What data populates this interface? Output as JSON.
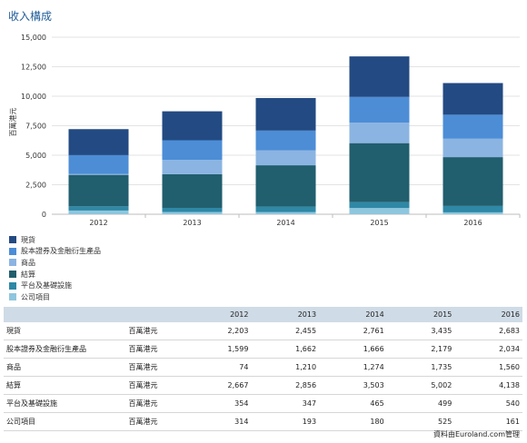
{
  "page": {
    "title": "收入構成",
    "credit": "資料由Euroland.com管理"
  },
  "chart_data": {
    "type": "bar",
    "stacked": true,
    "categories": [
      "2012",
      "2013",
      "2014",
      "2015",
      "2016"
    ],
    "ylabel": "百萬港元",
    "ylim": [
      0,
      15000
    ],
    "yticks": [
      0,
      2500,
      5000,
      7500,
      10000,
      12500,
      15000
    ],
    "ytick_labels": [
      "0",
      "2,500",
      "5,000",
      "7,500",
      "10,000",
      "12,500",
      "15,000"
    ],
    "grid": true,
    "legend_position": "bottom-left",
    "series": [
      {
        "name": "公司項目",
        "color": "#8ec6de",
        "values": [
          314,
          193,
          180,
          525,
          161
        ]
      },
      {
        "name": "平台及基礎設施",
        "color": "#2e88a6",
        "values": [
          354,
          347,
          465,
          499,
          540
        ]
      },
      {
        "name": "結算",
        "color": "#215e6e",
        "values": [
          2667,
          2856,
          3503,
          5002,
          4138
        ]
      },
      {
        "name": "商品",
        "color": "#8bb4e2",
        "values": [
          74,
          1210,
          1274,
          1735,
          1560
        ]
      },
      {
        "name": "股本證券及金融衍生產品",
        "color": "#4c8dd6",
        "values": [
          1599,
          1662,
          1666,
          2179,
          2034
        ]
      },
      {
        "name": "現貨",
        "color": "#234a82",
        "values": [
          2203,
          2455,
          2761,
          3435,
          2683
        ]
      }
    ]
  },
  "legend": {
    "items": [
      {
        "label": "現貨",
        "color": "#234a82"
      },
      {
        "label": "股本證券及金融衍生產品",
        "color": "#4c8dd6"
      },
      {
        "label": "商品",
        "color": "#8bb4e2"
      },
      {
        "label": "結算",
        "color": "#215e6e"
      },
      {
        "label": "平台及基礎設施",
        "color": "#2e88a6"
      },
      {
        "label": "公司項目",
        "color": "#8ec6de"
      }
    ]
  },
  "table": {
    "headers": [
      "",
      "",
      "2012",
      "2013",
      "2014",
      "2015",
      "2016"
    ],
    "rows": [
      {
        "name": "現貨",
        "unit": "百萬港元",
        "values": [
          "2,203",
          "2,455",
          "2,761",
          "3,435",
          "2,683"
        ]
      },
      {
        "name": "股本證券及金融衍生產品",
        "unit": "百萬港元",
        "values": [
          "1,599",
          "1,662",
          "1,666",
          "2,179",
          "2,034"
        ]
      },
      {
        "name": "商品",
        "unit": "百萬港元",
        "values": [
          "74",
          "1,210",
          "1,274",
          "1,735",
          "1,560"
        ]
      },
      {
        "name": "結算",
        "unit": "百萬港元",
        "values": [
          "2,667",
          "2,856",
          "3,503",
          "5,002",
          "4,138"
        ]
      },
      {
        "name": "平台及基礎設施",
        "unit": "百萬港元",
        "values": [
          "354",
          "347",
          "465",
          "499",
          "540"
        ]
      },
      {
        "name": "公司項目",
        "unit": "百萬港元",
        "values": [
          "314",
          "193",
          "180",
          "525",
          "161"
        ]
      }
    ]
  }
}
